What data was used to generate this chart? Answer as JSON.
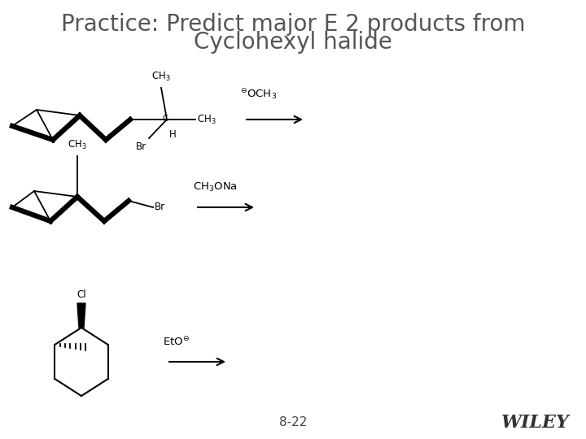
{
  "title_line1": "Practice: Predict major E 2 products from",
  "title_line2": "Cyclohexyl halide",
  "title_fontsize": 20,
  "title_color": "#555555",
  "background_color": "#ffffff",
  "slide_number": "8-22",
  "wiley_text": "WILEY",
  "wiley_fontsize": 16,
  "reagent1": "⊖OCH₃",
  "reagent2": "CH₃ONa",
  "reagent3": "EtO⊖",
  "arrow_color": "#000000"
}
